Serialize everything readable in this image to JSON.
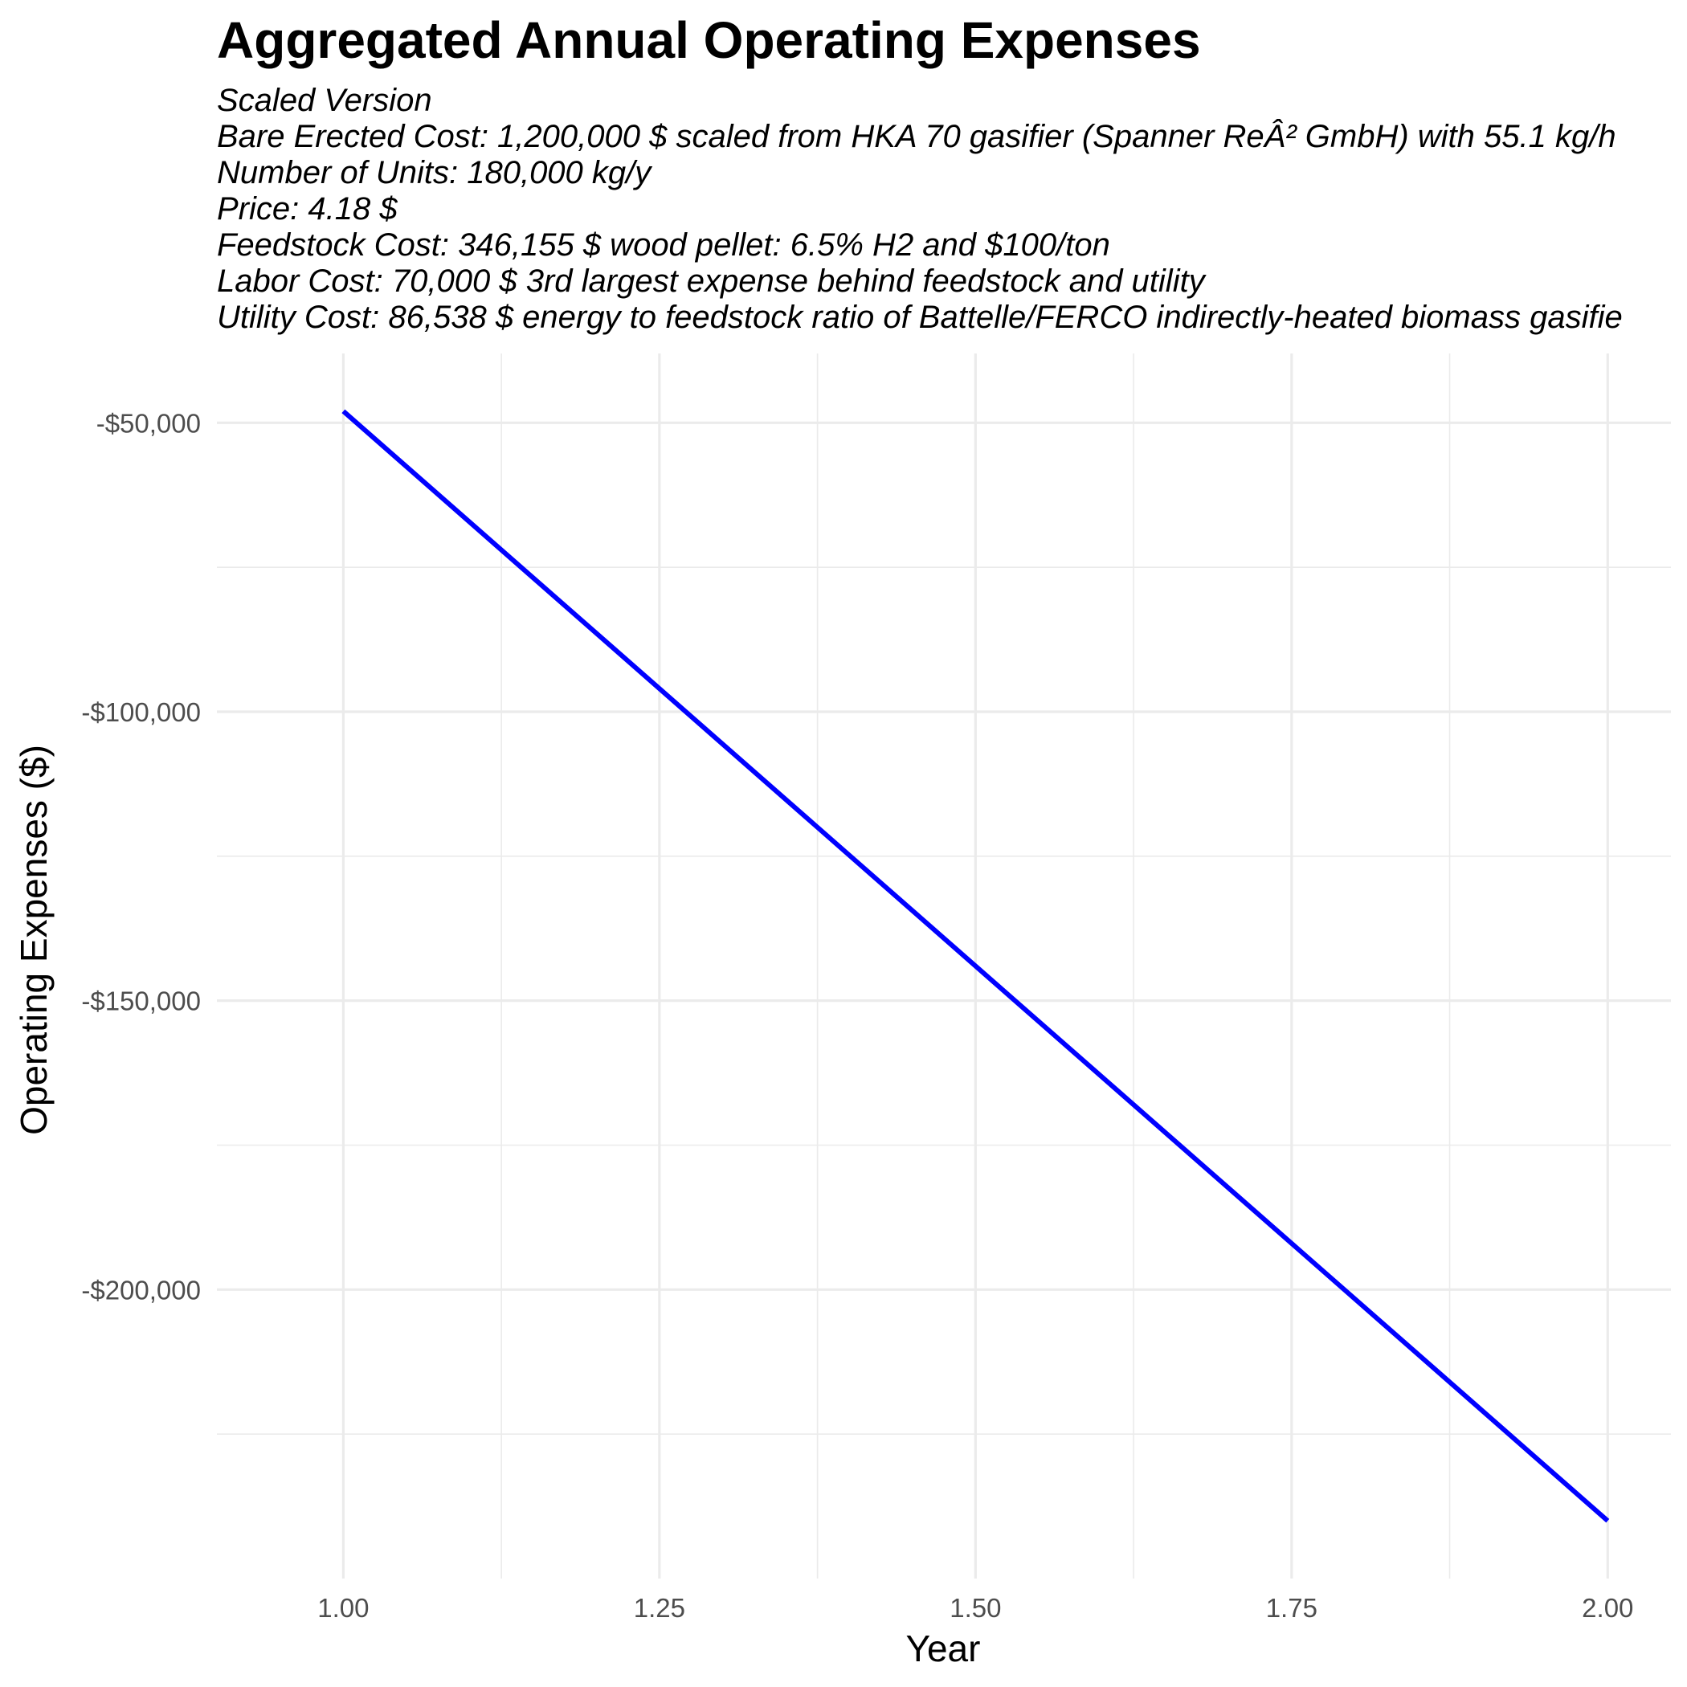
{
  "chart_data": {
    "type": "line",
    "title": "Aggregated Annual Operating Expenses",
    "subtitle_lines": [
      "Scaled Version",
      "Bare Erected Cost: 1,200,000 $ scaled from HKA 70 gasifier (Spanner ReÂ² GmbH) with 55.1 kg/h",
      "Number of Units: 180,000 kg/y",
      "Price: 4.18 $",
      "Feedstock Cost: 346,155 $ wood pellet: 6.5% H2 and $100/ton",
      "Labor Cost: 70,000 $ 3rd largest expense behind feedstock and utility",
      "Utility Cost: 86,538 $ energy to feedstock ratio of Battelle/FERCO indirectly-heated biomass gasifie"
    ],
    "xlabel": "Year",
    "ylabel": "Operating Expenses ($)",
    "x": [
      1.0,
      2.0
    ],
    "series": [
      {
        "values": [
          -48000,
          -240000
        ],
        "color": "#0000ff"
      }
    ],
    "xlim": [
      0.9,
      2.05
    ],
    "ylim": [
      -250000,
      -38000
    ],
    "x_ticks": [
      1.0,
      1.25,
      1.5,
      1.75,
      2.0
    ],
    "x_tick_labels": [
      "1.00",
      "1.25",
      "1.50",
      "1.75",
      "2.00"
    ],
    "y_ticks": [
      -50000,
      -100000,
      -150000,
      -200000
    ],
    "y_tick_labels": [
      "-$50,000",
      "-$100,000",
      "-$150,000",
      "-$200,000"
    ],
    "grid": true,
    "legend": "none"
  }
}
